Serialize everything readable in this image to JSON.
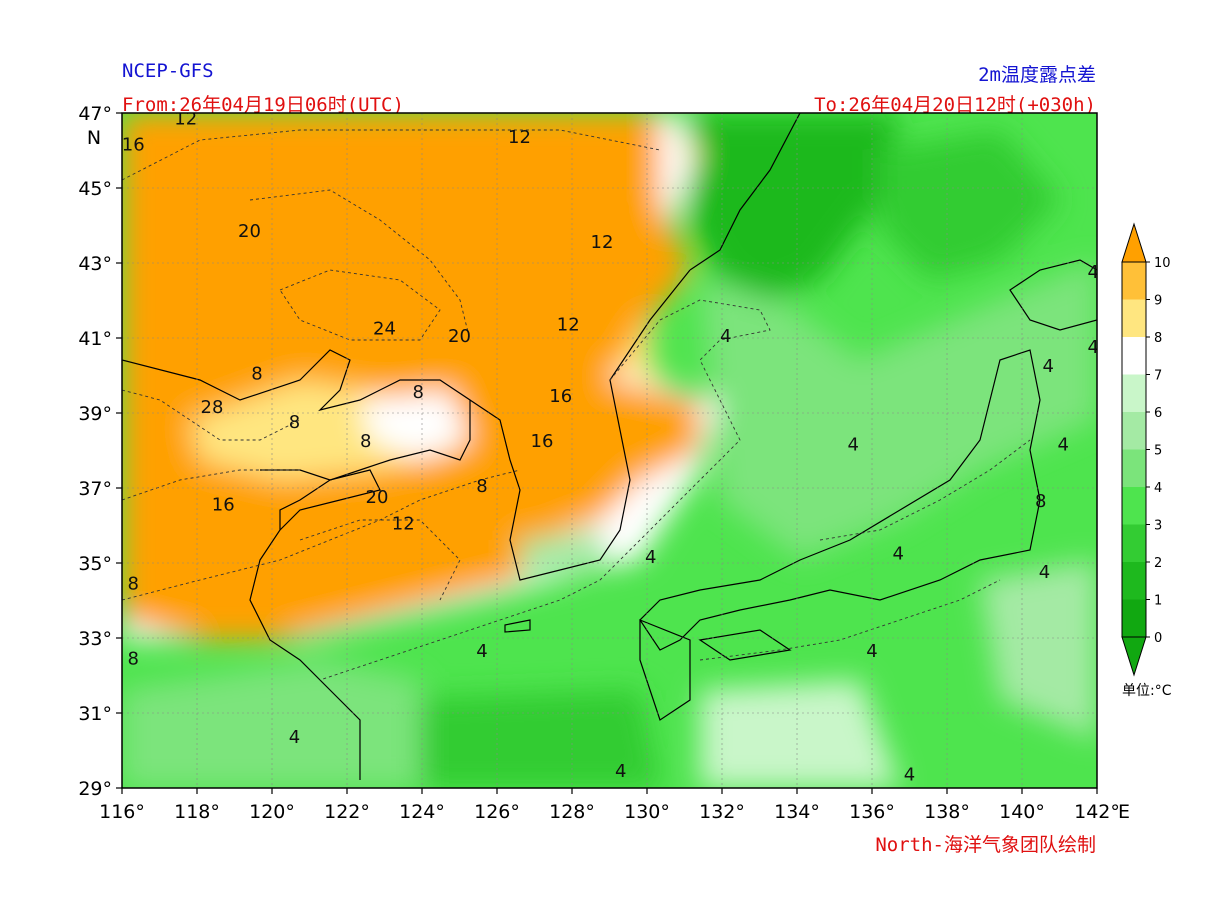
{
  "header": {
    "model": "NCEP-GFS",
    "product": "2m温度露点差",
    "from": "From:26年04月19日06时(UTC)",
    "to": "To:26年04月20日12时(+030h)"
  },
  "footer": {
    "credit": "North-海洋气象团队绘制"
  },
  "map": {
    "lon_range": [
      116,
      142
    ],
    "lat_range": [
      29,
      47
    ],
    "lon_ticks": [
      {
        "v": 116,
        "t": "116°"
      },
      {
        "v": 118,
        "t": "118°"
      },
      {
        "v": 120,
        "t": "120°"
      },
      {
        "v": 122,
        "t": "122°"
      },
      {
        "v": 124,
        "t": "124°"
      },
      {
        "v": 126,
        "t": "126°"
      },
      {
        "v": 128,
        "t": "128°"
      },
      {
        "v": 130,
        "t": "130°"
      },
      {
        "v": 132,
        "t": "132°"
      },
      {
        "v": 134,
        "t": "134°"
      },
      {
        "v": 136,
        "t": "136°"
      },
      {
        "v": 138,
        "t": "138°"
      },
      {
        "v": 140,
        "t": "140°"
      },
      {
        "v": 142,
        "t": "142°"
      }
    ],
    "lat_ticks": [
      {
        "v": 47,
        "t": "47°"
      },
      {
        "v": 45,
        "t": "45°"
      },
      {
        "v": 43,
        "t": "43°"
      },
      {
        "v": 41,
        "t": "41°"
      },
      {
        "v": 39,
        "t": "39°"
      },
      {
        "v": 37,
        "t": "37°"
      },
      {
        "v": 35,
        "t": "35°"
      },
      {
        "v": 33,
        "t": "33°"
      },
      {
        "v": 31,
        "t": "31°"
      },
      {
        "v": 29,
        "t": "29°"
      }
    ],
    "lon_suffix": "E",
    "lat_suffix": "N",
    "contour_labels": [
      {
        "lon": 119.4,
        "lat": 43.7,
        "t": "20"
      },
      {
        "lon": 126.6,
        "lat": 46.2,
        "t": "12"
      },
      {
        "lon": 123.0,
        "lat": 41.1,
        "t": "24"
      },
      {
        "lon": 125.0,
        "lat": 40.9,
        "t": "20"
      },
      {
        "lon": 128.8,
        "lat": 43.4,
        "t": "12"
      },
      {
        "lon": 127.9,
        "lat": 41.2,
        "t": "12"
      },
      {
        "lon": 116.3,
        "lat": 46.0,
        "t": "16"
      },
      {
        "lon": 117.7,
        "lat": 46.7,
        "t": "12"
      },
      {
        "lon": 118.4,
        "lat": 39.0,
        "t": "28"
      },
      {
        "lon": 118.7,
        "lat": 36.4,
        "t": "16"
      },
      {
        "lon": 122.8,
        "lat": 36.6,
        "t": "20"
      },
      {
        "lon": 123.5,
        "lat": 35.9,
        "t": "12"
      },
      {
        "lon": 127.7,
        "lat": 39.3,
        "t": "16"
      },
      {
        "lon": 127.2,
        "lat": 38.1,
        "t": "16"
      },
      {
        "lon": 132.1,
        "lat": 40.9,
        "t": "4"
      },
      {
        "lon": 125.6,
        "lat": 32.5,
        "t": "4"
      },
      {
        "lon": 136.0,
        "lat": 32.5,
        "t": "4"
      },
      {
        "lon": 130.1,
        "lat": 35.0,
        "t": "4"
      },
      {
        "lon": 135.5,
        "lat": 38.0,
        "t": "4"
      },
      {
        "lon": 136.7,
        "lat": 35.1,
        "t": "4"
      },
      {
        "lon": 141.1,
        "lat": 38.0,
        "t": "4"
      },
      {
        "lon": 140.7,
        "lat": 40.1,
        "t": "4"
      },
      {
        "lon": 140.6,
        "lat": 34.6,
        "t": "4"
      },
      {
        "lon": 120.6,
        "lat": 30.2,
        "t": "4"
      },
      {
        "lon": 129.3,
        "lat": 29.3,
        "t": "4"
      },
      {
        "lon": 137.0,
        "lat": 29.2,
        "t": "4"
      },
      {
        "lon": 122.5,
        "lat": 38.1,
        "t": "8"
      },
      {
        "lon": 120.6,
        "lat": 38.6,
        "t": "8"
      },
      {
        "lon": 119.6,
        "lat": 39.9,
        "t": "8"
      },
      {
        "lon": 123.9,
        "lat": 39.4,
        "t": "8"
      },
      {
        "lon": 125.6,
        "lat": 36.9,
        "t": "8"
      },
      {
        "lon": 116.3,
        "lat": 34.3,
        "t": "8"
      },
      {
        "lon": 116.3,
        "lat": 32.3,
        "t": "8"
      },
      {
        "lon": 140.5,
        "lat": 36.5,
        "t": "8"
      },
      {
        "lon": 141.9,
        "lat": 42.6,
        "t": "4"
      },
      {
        "lon": 141.9,
        "lat": 40.6,
        "t": "4"
      }
    ]
  },
  "colorbar": {
    "levels": [
      {
        "v": 0,
        "t": "0",
        "color": "#11a811"
      },
      {
        "v": 1,
        "t": "1",
        "color": "#1eb91e"
      },
      {
        "v": 2,
        "t": "2",
        "color": "#33cc33"
      },
      {
        "v": 3,
        "t": "3",
        "color": "#4ee44e"
      },
      {
        "v": 4,
        "t": "4",
        "color": "#7be47b"
      },
      {
        "v": 5,
        "t": "5",
        "color": "#a4eaa4"
      },
      {
        "v": 6,
        "t": "6",
        "color": "#c9f6c9"
      },
      {
        "v": 7,
        "t": "7",
        "color": "#ffffff"
      },
      {
        "v": 8,
        "t": "8",
        "color": "#ffe680"
      },
      {
        "v": 9,
        "t": "9",
        "color": "#ffc038"
      },
      {
        "v": 10,
        "t": "10",
        "color": "#ffa000"
      }
    ],
    "under_color": "#11a811",
    "over_color": "#ffa000",
    "unit": "单位:°C"
  }
}
